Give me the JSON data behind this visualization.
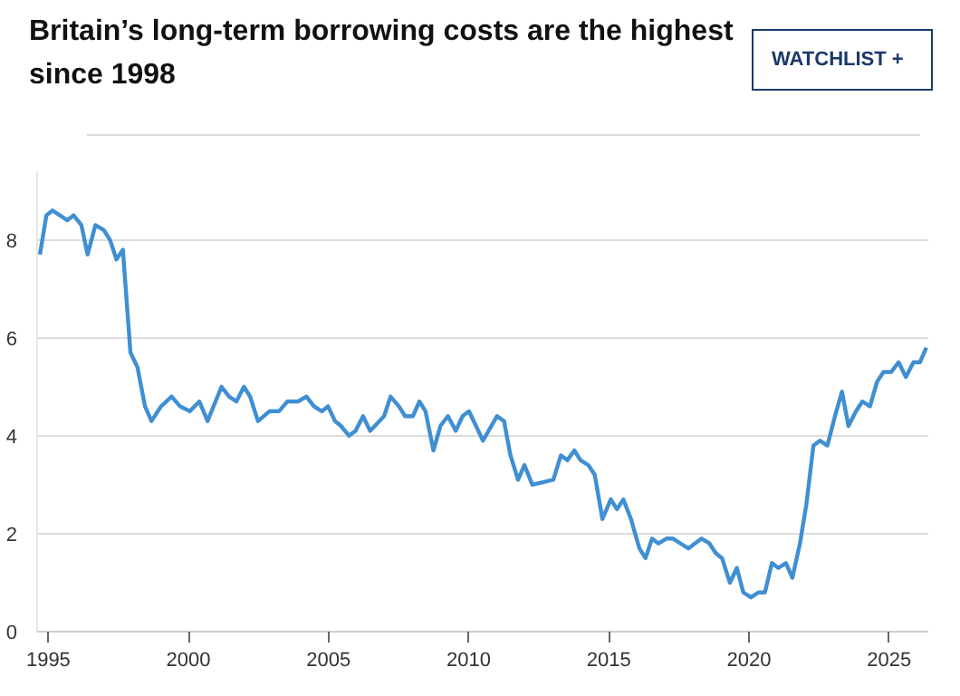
{
  "chart_data": {
    "type": "line",
    "title": "Britain’s long-term borrowing costs are the highest since 1998",
    "annotations": [
      "WATCHLIST +"
    ],
    "x": [
      1994.7,
      1994.93,
      1995.15,
      1995.68,
      1995.9,
      1996.18,
      1996.4,
      1996.68,
      1996.98,
      1997.2,
      1997.43,
      1997.66,
      1997.93,
      1998.18,
      1998.45,
      1998.68,
      1999.02,
      1999.4,
      1999.7,
      2000.05,
      2000.39,
      2000.68,
      2001.18,
      2001.45,
      2001.71,
      2001.98,
      2002.2,
      2002.48,
      2002.89,
      2003.23,
      2003.53,
      2003.91,
      2004.21,
      2004.48,
      2004.76,
      2004.98,
      2005.23,
      2005.44,
      2005.73,
      2005.96,
      2006.23,
      2006.48,
      2006.98,
      2007.21,
      2007.51,
      2007.73,
      2008.01,
      2008.24,
      2008.46,
      2008.74,
      2008.99,
      2009.26,
      2009.54,
      2009.78,
      2010.01,
      2010.51,
      2011.01,
      2011.26,
      2011.49,
      2011.76,
      2011.99,
      2012.27,
      2013.02,
      2013.29,
      2013.52,
      2013.77,
      2013.99,
      2014.27,
      2014.5,
      2014.77,
      2015.07,
      2015.29,
      2015.52,
      2015.79,
      2016.09,
      2016.31,
      2016.54,
      2016.77,
      2017.06,
      2017.29,
      2017.56,
      2017.84,
      2018.07,
      2018.31,
      2018.59,
      2018.82,
      2019.04,
      2019.32,
      2019.57,
      2019.8,
      2020.07,
      2020.34,
      2020.57,
      2020.82,
      2021.05,
      2021.32,
      2021.55,
      2021.82,
      2022.05,
      2022.3,
      2022.53,
      2022.8,
      2023.07,
      2023.32,
      2023.55,
      2023.82,
      2024.05,
      2024.32,
      2024.57,
      2024.8,
      2025.07,
      2025.34,
      2025.6,
      2025.87,
      2026.1,
      2026.33
    ],
    "series": [
      {
        "color": "#3f8fd2",
        "values": [
          7.7,
          8.5,
          8.6,
          8.4,
          8.5,
          8.3,
          7.7,
          8.3,
          8.2,
          8.0,
          7.6,
          7.8,
          5.7,
          5.4,
          4.6,
          4.3,
          4.6,
          4.8,
          4.6,
          4.5,
          4.7,
          4.3,
          5.0,
          4.8,
          4.7,
          5.0,
          4.8,
          4.3,
          4.5,
          4.5,
          4.7,
          4.7,
          4.8,
          4.6,
          4.5,
          4.6,
          4.3,
          4.2,
          4.0,
          4.1,
          4.4,
          4.1,
          4.4,
          4.8,
          4.6,
          4.4,
          4.4,
          4.7,
          4.5,
          3.7,
          4.2,
          4.4,
          4.1,
          4.4,
          4.5,
          3.9,
          4.4,
          4.3,
          3.6,
          3.1,
          3.4,
          3.0,
          3.1,
          3.6,
          3.5,
          3.7,
          3.5,
          3.4,
          3.2,
          2.3,
          2.7,
          2.5,
          2.7,
          2.3,
          1.7,
          1.5,
          1.9,
          1.8,
          1.9,
          1.9,
          1.8,
          1.7,
          1.8,
          1.9,
          1.8,
          1.6,
          1.5,
          1.0,
          1.3,
          0.8,
          0.7,
          0.8,
          0.8,
          1.4,
          1.3,
          1.4,
          1.1,
          1.8,
          2.6,
          3.8,
          3.9,
          3.8,
          4.4,
          4.9,
          4.2,
          4.5,
          4.7,
          4.6,
          5.1,
          5.3,
          5.3,
          5.5,
          5.2,
          5.5,
          5.5,
          5.8
        ]
      }
    ],
    "xlim": [
      1994.6,
      2026.4
    ],
    "ylim": [
      0,
      9.4
    ],
    "xticks": [
      1995,
      2000,
      2005,
      2010,
      2015,
      2020,
      2025
    ],
    "yticks": [
      0,
      2,
      4,
      6,
      8
    ],
    "grid": "y",
    "line_style": "solid",
    "marker": "none"
  }
}
